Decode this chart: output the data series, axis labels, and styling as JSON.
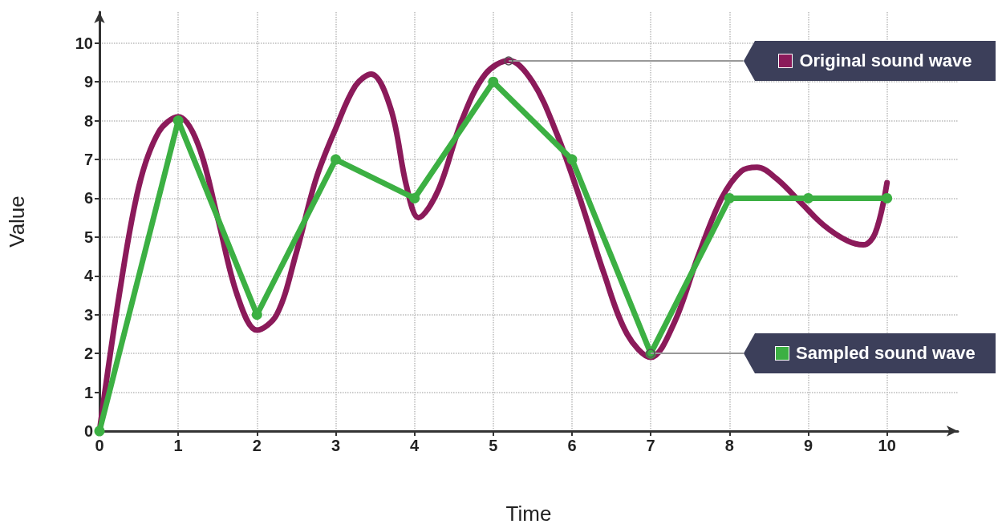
{
  "chart_data": {
    "type": "line",
    "xlabel": "Time",
    "ylabel": "Value",
    "series": [
      {
        "type": "line",
        "name": "Original sound wave",
        "color": "#8b1a5a",
        "marker": "none",
        "x": [
          0,
          0.25,
          0.5,
          0.75,
          1,
          1.25,
          1.5,
          1.75,
          2,
          2.25,
          2.5,
          2.75,
          3,
          3.25,
          3.45,
          3.7,
          3.9,
          4.05,
          4.3,
          4.6,
          4.9,
          5.2,
          5.5,
          5.8,
          6.1,
          6.4,
          6.7,
          7,
          7.3,
          7.6,
          7.9,
          8.15,
          8.35,
          8.6,
          8.9,
          9.2,
          9.5,
          9.7,
          9.85,
          10
        ],
        "values": [
          0,
          3.5,
          6.3,
          7.7,
          8.1,
          7.4,
          5.5,
          3.5,
          2.6,
          3,
          4.6,
          6.5,
          7.8,
          8.9,
          9.2,
          8.3,
          6.3,
          5.5,
          6.2,
          8,
          9.2,
          9.55,
          9,
          7.7,
          6,
          4.1,
          2.5,
          1.9,
          2.8,
          4.5,
          6,
          6.7,
          6.8,
          6.5,
          5.9,
          5.3,
          4.9,
          4.8,
          5.1,
          6.4
        ]
      },
      {
        "type": "line",
        "name": "Sampled sound wave",
        "color": "#3cb043",
        "marker": "circle",
        "x": [
          0,
          1,
          2,
          3,
          4,
          5,
          6,
          7,
          8,
          9,
          10
        ],
        "values": [
          0,
          8,
          3,
          7,
          6,
          9,
          7,
          2,
          6,
          6,
          6
        ]
      }
    ],
    "xlim": [
      0,
      10.9
    ],
    "ylim": [
      0,
      10.8
    ],
    "xticks": [
      0,
      1,
      2,
      3,
      4,
      5,
      6,
      7,
      8,
      9,
      10
    ],
    "yticks": [
      0,
      1,
      2,
      3,
      4,
      5,
      6,
      7,
      8,
      9,
      10
    ],
    "grid": true,
    "legend": "right"
  }
}
